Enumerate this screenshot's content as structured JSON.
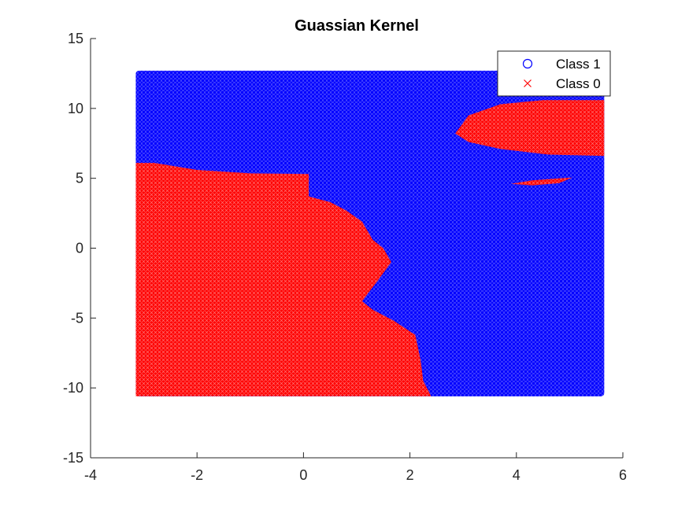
{
  "chart_data": {
    "type": "scatter",
    "title": "Guassian Kernel",
    "xlabel": "",
    "ylabel": "",
    "xlim": [
      -4,
      6
    ],
    "ylim": [
      -15,
      15
    ],
    "xticks": [
      -4,
      -2,
      0,
      2,
      4,
      6
    ],
    "yticks": [
      -15,
      -10,
      -5,
      0,
      5,
      10,
      15
    ],
    "grid": false,
    "legend_position": "top-right",
    "grid_x_range": [
      -3.15,
      5.65
    ],
    "grid_y_range": [
      -10.6,
      12.7
    ],
    "series": [
      {
        "name": "Class 1",
        "marker": "circle",
        "color": "#0000ff"
      },
      {
        "name": "Class 0",
        "marker": "x",
        "color": "#ff0000"
      }
    ],
    "regions": {
      "class_0_main_boundary": [
        [
          -3.15,
          6.1
        ],
        [
          -2.8,
          6.1
        ],
        [
          -2.0,
          5.6
        ],
        [
          -1.0,
          5.35
        ],
        [
          0.1,
          5.3
        ],
        [
          0.1,
          3.7
        ],
        [
          0.5,
          3.3
        ],
        [
          0.8,
          2.7
        ],
        [
          1.1,
          1.9
        ],
        [
          1.3,
          0.6
        ],
        [
          1.5,
          0.0
        ],
        [
          1.65,
          -1.0
        ],
        [
          1.4,
          -2.3
        ],
        [
          1.1,
          -3.8
        ],
        [
          1.3,
          -4.4
        ],
        [
          1.7,
          -5.2
        ],
        [
          2.1,
          -6.2
        ],
        [
          2.2,
          -8.0
        ],
        [
          2.25,
          -9.5
        ],
        [
          2.4,
          -10.6
        ],
        [
          -3.15,
          -10.6
        ]
      ],
      "class_0_islands": [
        [
          [
            2.85,
            8.2
          ],
          [
            3.1,
            9.5
          ],
          [
            3.7,
            10.3
          ],
          [
            4.5,
            10.6
          ],
          [
            5.65,
            10.6
          ],
          [
            5.65,
            6.6
          ],
          [
            4.6,
            6.7
          ],
          [
            3.7,
            7.1
          ],
          [
            3.1,
            7.6
          ]
        ],
        [
          [
            3.9,
            4.6
          ],
          [
            4.3,
            4.85
          ],
          [
            4.8,
            5.0
          ],
          [
            5.05,
            5.05
          ],
          [
            4.8,
            4.65
          ],
          [
            4.3,
            4.5
          ]
        ]
      ]
    }
  }
}
